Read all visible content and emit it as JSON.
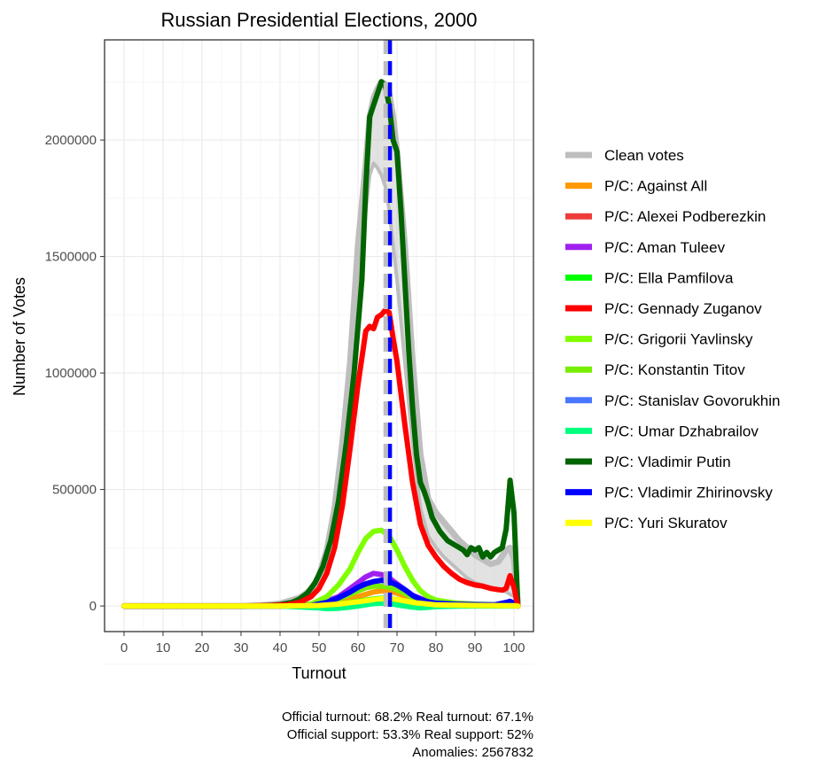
{
  "chart_data": {
    "type": "line",
    "title": "Russian Presidential Elections, 2000",
    "xlabel": "Turnout",
    "ylabel": "Number of Votes",
    "xlim": [
      -5,
      105
    ],
    "ylim": [
      -110000,
      2430000
    ],
    "x_ticks": [
      0,
      10,
      20,
      30,
      40,
      50,
      60,
      70,
      80,
      90,
      100
    ],
    "y_ticks": [
      0,
      500000,
      1000000,
      1500000,
      2000000
    ],
    "y_tick_labels": [
      "0",
      "500000",
      "1000000",
      "1500000",
      "2000000"
    ],
    "grid": true,
    "legend_position": "right",
    "official_turnout_line": 68.2,
    "real_turnout_line": 67.1,
    "series": [
      {
        "name": "Clean votes",
        "color": "#bebebe",
        "band": true,
        "x": [
          0,
          10,
          20,
          30,
          35,
          40,
          45,
          48,
          50,
          52,
          54,
          56,
          58,
          60,
          62,
          63,
          64,
          65,
          66,
          67,
          68,
          69,
          70,
          72,
          74,
          76,
          78,
          80,
          82,
          84,
          86,
          88,
          90,
          92,
          94,
          96,
          98,
          99,
          100,
          101
        ],
        "y": [
          0,
          0,
          0,
          0,
          2000,
          10000,
          35000,
          70000,
          130000,
          240000,
          420000,
          700000,
          1050000,
          1550000,
          1900000,
          2100000,
          2180000,
          2220000,
          2250000,
          2240000,
          2200000,
          2100000,
          1950000,
          1550000,
          1050000,
          650000,
          460000,
          400000,
          360000,
          320000,
          280000,
          250000,
          220000,
          200000,
          180000,
          190000,
          240000,
          250000,
          200000,
          10000
        ],
        "low": [
          0,
          0,
          0,
          0,
          1000,
          5000,
          20000,
          50000,
          100000,
          200000,
          360000,
          620000,
          950000,
          1400000,
          1700000,
          1850000,
          1900000,
          1880000,
          1850000,
          1800000,
          1700000,
          1550000,
          1400000,
          1050000,
          700000,
          420000,
          300000,
          250000,
          210000,
          180000,
          150000,
          120000,
          100000,
          90000,
          80000,
          70000,
          60000,
          50000,
          40000,
          5000
        ]
      },
      {
        "name": "P/C: Against All",
        "color": "#ff9900",
        "x": [
          0,
          40,
          50,
          55,
          60,
          64,
          66,
          68,
          70,
          74,
          80,
          90,
          100,
          101
        ],
        "y": [
          0,
          0,
          3000,
          15000,
          40000,
          60000,
          65000,
          62000,
          55000,
          30000,
          10000,
          4000,
          2000,
          0
        ]
      },
      {
        "name": "P/C: Alexei Podberezkin",
        "color": "#ee3b3b",
        "x": [
          0,
          40,
          50,
          55,
          60,
          64,
          66,
          68,
          70,
          74,
          80,
          90,
          100,
          101
        ],
        "y": [
          0,
          0,
          1000,
          5000,
          12000,
          18000,
          20000,
          19000,
          16000,
          9000,
          3000,
          1000,
          500,
          0
        ]
      },
      {
        "name": "P/C: Aman Tuleev",
        "color": "#a020f0",
        "x": [
          0,
          40,
          50,
          55,
          58,
          60,
          62,
          64,
          66,
          68,
          70,
          72,
          74,
          78,
          80,
          85,
          90,
          100,
          101
        ],
        "y": [
          0,
          0,
          8000,
          40000,
          75000,
          100000,
          125000,
          140000,
          135000,
          120000,
          95000,
          70000,
          45000,
          20000,
          12000,
          6000,
          4000,
          2000,
          0
        ]
      },
      {
        "name": "P/C: Ella Pamfilova",
        "color": "#00ff00",
        "x": [
          0,
          40,
          50,
          55,
          60,
          64,
          66,
          68,
          70,
          74,
          80,
          90,
          100,
          101
        ],
        "y": [
          0,
          0,
          2000,
          8000,
          20000,
          30000,
          33000,
          32000,
          28000,
          15000,
          5000,
          2000,
          1000,
          0
        ]
      },
      {
        "name": "P/C: Gennady Zuganov",
        "color": "#ff0000",
        "x": [
          0,
          30,
          38,
          42,
          45,
          48,
          50,
          52,
          54,
          56,
          58,
          60,
          62,
          63,
          64,
          65,
          66,
          67,
          68,
          69,
          70,
          72,
          74,
          76,
          78,
          80,
          82,
          84,
          86,
          88,
          90,
          92,
          94,
          96,
          97,
          98,
          99,
          100,
          101
        ],
        "y": [
          0,
          0,
          2000,
          6000,
          15000,
          40000,
          75000,
          140000,
          250000,
          430000,
          680000,
          950000,
          1180000,
          1200000,
          1190000,
          1240000,
          1250000,
          1270000,
          1260000,
          1150000,
          1050000,
          780000,
          530000,
          350000,
          260000,
          210000,
          170000,
          140000,
          115000,
          100000,
          90000,
          85000,
          75000,
          70000,
          68000,
          75000,
          130000,
          80000,
          0
        ]
      },
      {
        "name": "P/C: Grigorii Yavlinsky",
        "color": "#7fff00",
        "x": [
          0,
          40,
          48,
          52,
          55,
          58,
          60,
          62,
          64,
          66,
          68,
          70,
          72,
          74,
          76,
          78,
          80,
          85,
          90,
          100,
          101
        ],
        "y": [
          0,
          0,
          8000,
          40000,
          90000,
          160000,
          230000,
          290000,
          320000,
          325000,
          300000,
          240000,
          170000,
          110000,
          65000,
          40000,
          25000,
          12000,
          8000,
          3000,
          0
        ]
      },
      {
        "name": "P/C: Konstantin Titov",
        "color": "#76ee00",
        "x": [
          0,
          40,
          48,
          52,
          55,
          58,
          60,
          62,
          64,
          66,
          68,
          70,
          72,
          74,
          76,
          78,
          80,
          85,
          90,
          100,
          101
        ],
        "y": [
          0,
          0,
          3000,
          15000,
          30000,
          50000,
          65000,
          78000,
          85000,
          85000,
          80000,
          70000,
          55000,
          35000,
          22000,
          13000,
          8000,
          4000,
          3000,
          1000,
          0
        ]
      },
      {
        "name": "P/C: Stanislav Govorukhin",
        "color": "#4876ff",
        "x": [
          0,
          40,
          50,
          55,
          60,
          64,
          66,
          68,
          70,
          74,
          80,
          90,
          100,
          101
        ],
        "y": [
          0,
          0,
          1000,
          4000,
          8000,
          12000,
          13000,
          12000,
          10000,
          6000,
          2000,
          1000,
          500,
          0
        ]
      },
      {
        "name": "P/C: Umar Dzhabrailov",
        "color": "#00ff7f",
        "x": [
          0,
          40,
          50,
          52,
          55,
          58,
          60,
          62,
          64,
          66,
          68,
          70,
          72,
          74,
          76,
          78,
          80,
          85,
          90,
          100,
          101
        ],
        "y": [
          0,
          0,
          -8000,
          -12000,
          -10000,
          -5000,
          0,
          5000,
          10000,
          12000,
          10000,
          5000,
          0,
          -5000,
          -8000,
          -6000,
          -3000,
          -1000,
          0,
          0,
          0
        ]
      },
      {
        "name": "P/C: Vladimir Putin",
        "color": "#006400",
        "x": [
          0,
          30,
          35,
          38,
          40,
          43,
          45,
          47,
          49,
          51,
          53,
          55,
          57,
          59,
          61,
          62,
          63,
          64,
          65,
          66,
          67,
          68,
          69,
          70,
          71,
          72,
          73,
          74,
          75,
          76,
          77,
          78,
          79,
          80,
          81,
          82,
          83,
          84,
          85,
          86,
          87,
          88,
          89,
          90,
          91,
          92,
          93,
          94,
          95,
          96,
          97,
          98,
          99,
          100,
          101
        ],
        "y": [
          0,
          0,
          1000,
          3000,
          6000,
          15000,
          30000,
          55000,
          100000,
          170000,
          280000,
          450000,
          700000,
          1000000,
          1400000,
          1800000,
          2100000,
          2150000,
          2200000,
          2250000,
          2230000,
          2150000,
          2000000,
          1950000,
          1700000,
          1400000,
          1100000,
          850000,
          650000,
          530000,
          490000,
          440000,
          380000,
          350000,
          320000,
          300000,
          280000,
          270000,
          260000,
          250000,
          240000,
          220000,
          250000,
          240000,
          250000,
          210000,
          230000,
          210000,
          230000,
          240000,
          250000,
          330000,
          540000,
          400000,
          0
        ]
      },
      {
        "name": "P/C: Vladimir Zhirinovsky",
        "color": "#0000ff",
        "x": [
          0,
          40,
          48,
          52,
          55,
          58,
          60,
          62,
          64,
          66,
          68,
          70,
          72,
          74,
          76,
          78,
          80,
          85,
          90,
          95,
          98,
          99,
          100,
          101
        ],
        "y": [
          0,
          0,
          2000,
          15000,
          35000,
          60000,
          80000,
          95000,
          105000,
          110000,
          105000,
          90000,
          70000,
          45000,
          28000,
          18000,
          12000,
          8000,
          6000,
          5000,
          15000,
          20000,
          12000,
          0
        ]
      },
      {
        "name": "P/C: Yuri Skuratov",
        "color": "#ffff00",
        "x": [
          0,
          40,
          50,
          55,
          60,
          63,
          65,
          67,
          69,
          71,
          74,
          80,
          90,
          100,
          101
        ],
        "y": [
          0,
          0,
          2000,
          8000,
          18000,
          25000,
          30000,
          32000,
          30000,
          25000,
          15000,
          5000,
          2000,
          1000,
          0
        ]
      }
    ],
    "annotations": [
      "Official turnout: 68.2%   Real turnout: 67.1%",
      "Official support: 53.3%   Real support: 52%",
      "Anomalies: 2567832"
    ]
  }
}
